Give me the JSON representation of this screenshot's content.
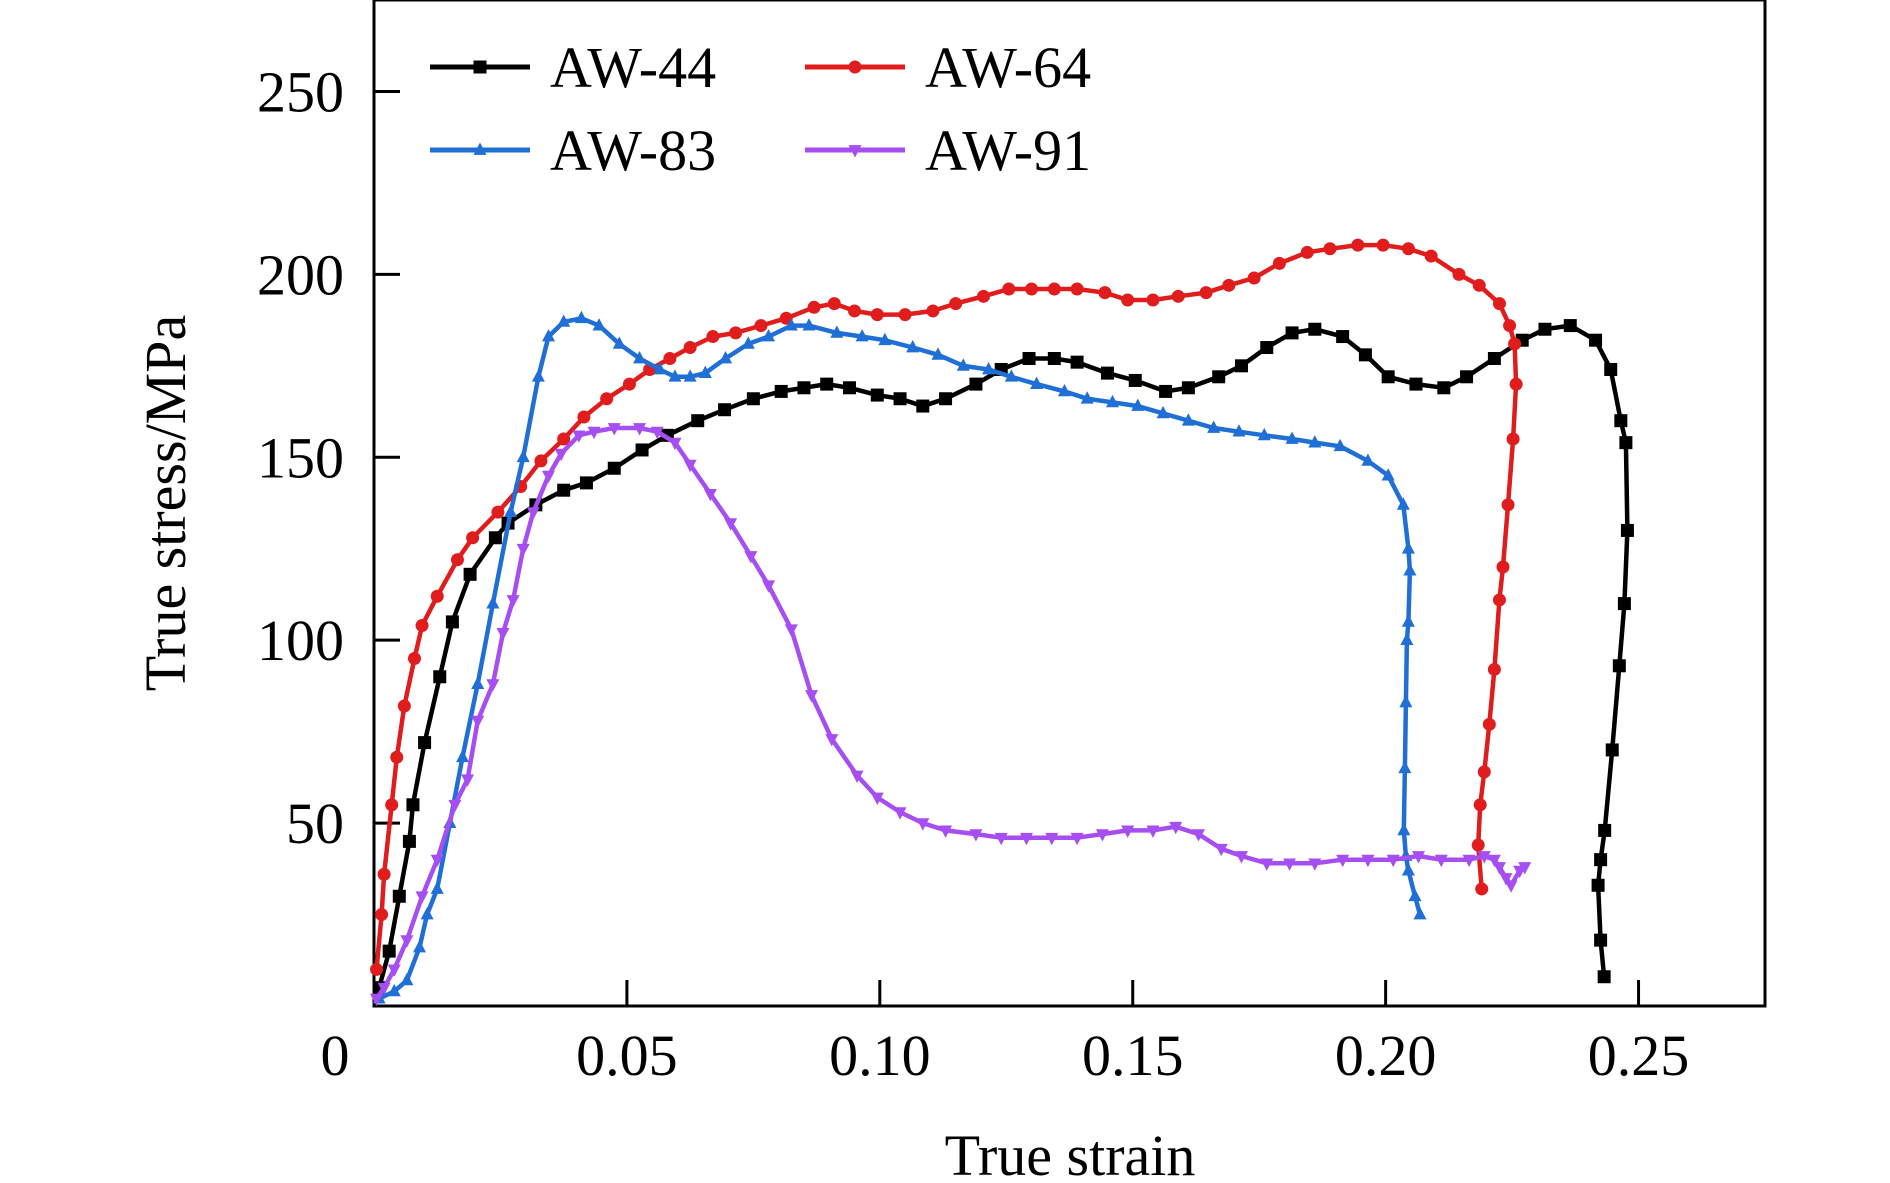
{
  "chart_data": {
    "type": "line",
    "title": "",
    "xlabel": "True strain",
    "ylabel": "True stress/MPa",
    "xlim": [
      0,
      0.275
    ],
    "ylim": [
      0,
      275
    ],
    "origin_label": "0",
    "x_ticks": [
      0.05,
      0.1,
      0.15,
      0.2,
      0.25
    ],
    "x_tick_labels": [
      "0.05",
      "0.10",
      "0.15",
      "0.20",
      "0.25"
    ],
    "y_ticks": [
      50,
      100,
      150,
      200,
      250
    ],
    "y_tick_labels": [
      "50",
      "100",
      "150",
      "200",
      "250"
    ],
    "grid": false,
    "legend_position": "top-left",
    "series": [
      {
        "name": "AW-44",
        "color": "#000000",
        "marker": "square",
        "points": [
          [
            0.001,
            5
          ],
          [
            0.003,
            15
          ],
          [
            0.005,
            30
          ],
          [
            0.007,
            45
          ],
          [
            0.0077,
            55
          ],
          [
            0.01,
            72
          ],
          [
            0.013,
            90
          ],
          [
            0.0155,
            105
          ],
          [
            0.019,
            118
          ],
          [
            0.024,
            128
          ],
          [
            0.0265,
            132
          ],
          [
            0.032,
            137
          ],
          [
            0.0375,
            141
          ],
          [
            0.042,
            143
          ],
          [
            0.0475,
            147
          ],
          [
            0.053,
            152
          ],
          [
            0.058,
            156
          ],
          [
            0.064,
            160
          ],
          [
            0.0693,
            163
          ],
          [
            0.075,
            166
          ],
          [
            0.0805,
            168
          ],
          [
            0.085,
            169
          ],
          [
            0.0895,
            170
          ],
          [
            0.094,
            169
          ],
          [
            0.0995,
            167
          ],
          [
            0.104,
            166
          ],
          [
            0.1085,
            164
          ],
          [
            0.113,
            166
          ],
          [
            0.119,
            170
          ],
          [
            0.124,
            174
          ],
          [
            0.1295,
            177
          ],
          [
            0.1345,
            177
          ],
          [
            0.139,
            176
          ],
          [
            0.145,
            173
          ],
          [
            0.1505,
            171
          ],
          [
            0.1565,
            168
          ],
          [
            0.161,
            169
          ],
          [
            0.167,
            172
          ],
          [
            0.1715,
            175
          ],
          [
            0.1765,
            180
          ],
          [
            0.1815,
            184
          ],
          [
            0.186,
            185
          ],
          [
            0.1915,
            183
          ],
          [
            0.196,
            178
          ],
          [
            0.2005,
            172
          ],
          [
            0.206,
            170
          ],
          [
            0.2115,
            169
          ],
          [
            0.216,
            172
          ],
          [
            0.2215,
            177
          ],
          [
            0.227,
            182
          ],
          [
            0.2315,
            185
          ],
          [
            0.2365,
            186
          ],
          [
            0.2415,
            182
          ],
          [
            0.2445,
            174
          ],
          [
            0.2465,
            160
          ],
          [
            0.2475,
            154
          ],
          [
            0.2478,
            130
          ],
          [
            0.2472,
            110
          ],
          [
            0.2462,
            93
          ],
          [
            0.2448,
            70
          ],
          [
            0.2433,
            48
          ],
          [
            0.2425,
            40
          ],
          [
            0.242,
            33
          ],
          [
            0.2425,
            18
          ],
          [
            0.2432,
            8
          ]
        ]
      },
      {
        "name": "AW-64",
        "color": "#e01c1c",
        "marker": "circle",
        "points": [
          [
            0.0005,
            10
          ],
          [
            0.0015,
            25
          ],
          [
            0.002,
            36
          ],
          [
            0.0035,
            55
          ],
          [
            0.0045,
            68
          ],
          [
            0.006,
            82
          ],
          [
            0.008,
            95
          ],
          [
            0.0095,
            104
          ],
          [
            0.0125,
            112
          ],
          [
            0.0165,
            122
          ],
          [
            0.0195,
            128
          ],
          [
            0.0245,
            135
          ],
          [
            0.029,
            142
          ],
          [
            0.033,
            149
          ],
          [
            0.0375,
            155
          ],
          [
            0.0415,
            161
          ],
          [
            0.046,
            166
          ],
          [
            0.0505,
            170
          ],
          [
            0.0545,
            174
          ],
          [
            0.0585,
            177
          ],
          [
            0.0625,
            180
          ],
          [
            0.067,
            183
          ],
          [
            0.0715,
            184
          ],
          [
            0.0765,
            186
          ],
          [
            0.0815,
            188
          ],
          [
            0.087,
            191
          ],
          [
            0.091,
            192
          ],
          [
            0.095,
            190
          ],
          [
            0.0995,
            189
          ],
          [
            0.105,
            189
          ],
          [
            0.1105,
            190
          ],
          [
            0.115,
            192
          ],
          [
            0.1205,
            194
          ],
          [
            0.1255,
            196
          ],
          [
            0.13,
            196
          ],
          [
            0.1345,
            196
          ],
          [
            0.139,
            196
          ],
          [
            0.1445,
            195
          ],
          [
            0.149,
            193
          ],
          [
            0.154,
            193
          ],
          [
            0.159,
            194
          ],
          [
            0.1645,
            195
          ],
          [
            0.169,
            197
          ],
          [
            0.174,
            199
          ],
          [
            0.179,
            203
          ],
          [
            0.1845,
            206
          ],
          [
            0.189,
            207
          ],
          [
            0.1945,
            208
          ],
          [
            0.1995,
            208
          ],
          [
            0.2045,
            207
          ],
          [
            0.209,
            205
          ],
          [
            0.2145,
            200
          ],
          [
            0.2185,
            197
          ],
          [
            0.2225,
            192
          ],
          [
            0.2245,
            186
          ],
          [
            0.2255,
            181
          ],
          [
            0.2258,
            170
          ],
          [
            0.2252,
            155
          ],
          [
            0.2242,
            137
          ],
          [
            0.2232,
            120
          ],
          [
            0.2225,
            111
          ],
          [
            0.2215,
            92
          ],
          [
            0.2205,
            77
          ],
          [
            0.2195,
            64
          ],
          [
            0.2187,
            55
          ],
          [
            0.2183,
            44
          ],
          [
            0.219,
            32
          ]
        ]
      },
      {
        "name": "AW-83",
        "color": "#1f6fd6",
        "marker": "triangle-up",
        "points": [
          [
            0.001,
            2
          ],
          [
            0.004,
            4
          ],
          [
            0.0065,
            7
          ],
          [
            0.009,
            16
          ],
          [
            0.0105,
            25
          ],
          [
            0.0125,
            32
          ],
          [
            0.015,
            50
          ],
          [
            0.0175,
            68
          ],
          [
            0.0205,
            88
          ],
          [
            0.0235,
            110
          ],
          [
            0.027,
            135
          ],
          [
            0.0295,
            150
          ],
          [
            0.0325,
            172
          ],
          [
            0.0345,
            183
          ],
          [
            0.0375,
            187
          ],
          [
            0.041,
            188
          ],
          [
            0.0445,
            186
          ],
          [
            0.0485,
            181
          ],
          [
            0.0525,
            177
          ],
          [
            0.0565,
            174
          ],
          [
            0.0595,
            172
          ],
          [
            0.0625,
            172
          ],
          [
            0.0655,
            173
          ],
          [
            0.0695,
            177
          ],
          [
            0.074,
            181
          ],
          [
            0.078,
            183
          ],
          [
            0.0825,
            186
          ],
          [
            0.086,
            186
          ],
          [
            0.0915,
            184
          ],
          [
            0.0965,
            183
          ],
          [
            0.101,
            182
          ],
          [
            0.1065,
            180
          ],
          [
            0.1115,
            178
          ],
          [
            0.1165,
            175
          ],
          [
            0.1215,
            174
          ],
          [
            0.126,
            172
          ],
          [
            0.131,
            170
          ],
          [
            0.1365,
            168
          ],
          [
            0.141,
            166
          ],
          [
            0.146,
            165
          ],
          [
            0.151,
            164
          ],
          [
            0.156,
            162
          ],
          [
            0.161,
            160
          ],
          [
            0.166,
            158
          ],
          [
            0.171,
            157
          ],
          [
            0.176,
            156
          ],
          [
            0.1815,
            155
          ],
          [
            0.186,
            154
          ],
          [
            0.191,
            153
          ],
          [
            0.1965,
            149
          ],
          [
            0.2005,
            145
          ],
          [
            0.2035,
            137
          ],
          [
            0.2045,
            125
          ],
          [
            0.2048,
            119
          ],
          [
            0.2045,
            105
          ],
          [
            0.2042,
            100
          ],
          [
            0.204,
            83
          ],
          [
            0.2038,
            65
          ],
          [
            0.2036,
            48
          ],
          [
            0.204,
            41
          ],
          [
            0.2045,
            37
          ],
          [
            0.2058,
            30
          ],
          [
            0.2068,
            25
          ]
        ]
      },
      {
        "name": "AW-91",
        "color": "#a64ef2",
        "marker": "triangle-down",
        "points": [
          [
            0.0005,
            2
          ],
          [
            0.002,
            5
          ],
          [
            0.004,
            10
          ],
          [
            0.0065,
            18
          ],
          [
            0.0095,
            30
          ],
          [
            0.0125,
            40
          ],
          [
            0.016,
            55
          ],
          [
            0.0185,
            62
          ],
          [
            0.0205,
            78
          ],
          [
            0.0235,
            88
          ],
          [
            0.0255,
            102
          ],
          [
            0.0275,
            111
          ],
          [
            0.0295,
            125
          ],
          [
            0.0315,
            135
          ],
          [
            0.0345,
            145
          ],
          [
            0.037,
            151
          ],
          [
            0.0405,
            156
          ],
          [
            0.0435,
            157
          ],
          [
            0.0475,
            158
          ],
          [
            0.0525,
            158
          ],
          [
            0.056,
            157
          ],
          [
            0.0595,
            154
          ],
          [
            0.0625,
            148
          ],
          [
            0.0665,
            140
          ],
          [
            0.0705,
            132
          ],
          [
            0.0745,
            123
          ],
          [
            0.078,
            115
          ],
          [
            0.0825,
            103
          ],
          [
            0.0865,
            85
          ],
          [
            0.0905,
            73
          ],
          [
            0.0955,
            63
          ],
          [
            0.0995,
            57
          ],
          [
            0.104,
            53
          ],
          [
            0.1085,
            50
          ],
          [
            0.113,
            48
          ],
          [
            0.119,
            47
          ],
          [
            0.124,
            46
          ],
          [
            0.129,
            46
          ],
          [
            0.134,
            46
          ],
          [
            0.139,
            46
          ],
          [
            0.144,
            47
          ],
          [
            0.149,
            48
          ],
          [
            0.154,
            48
          ],
          [
            0.1585,
            49
          ],
          [
            0.163,
            47
          ],
          [
            0.1675,
            43
          ],
          [
            0.1715,
            41
          ],
          [
            0.1765,
            39
          ],
          [
            0.181,
            39
          ],
          [
            0.186,
            39
          ],
          [
            0.1915,
            40
          ],
          [
            0.1965,
            40
          ],
          [
            0.2015,
            40
          ],
          [
            0.2065,
            41
          ],
          [
            0.211,
            40
          ],
          [
            0.2165,
            40
          ],
          [
            0.2195,
            41
          ],
          [
            0.2215,
            40
          ],
          [
            0.2225,
            38
          ],
          [
            0.2238,
            35
          ],
          [
            0.2248,
            33
          ],
          [
            0.2265,
            37
          ],
          [
            0.2275,
            38
          ]
        ]
      }
    ]
  }
}
